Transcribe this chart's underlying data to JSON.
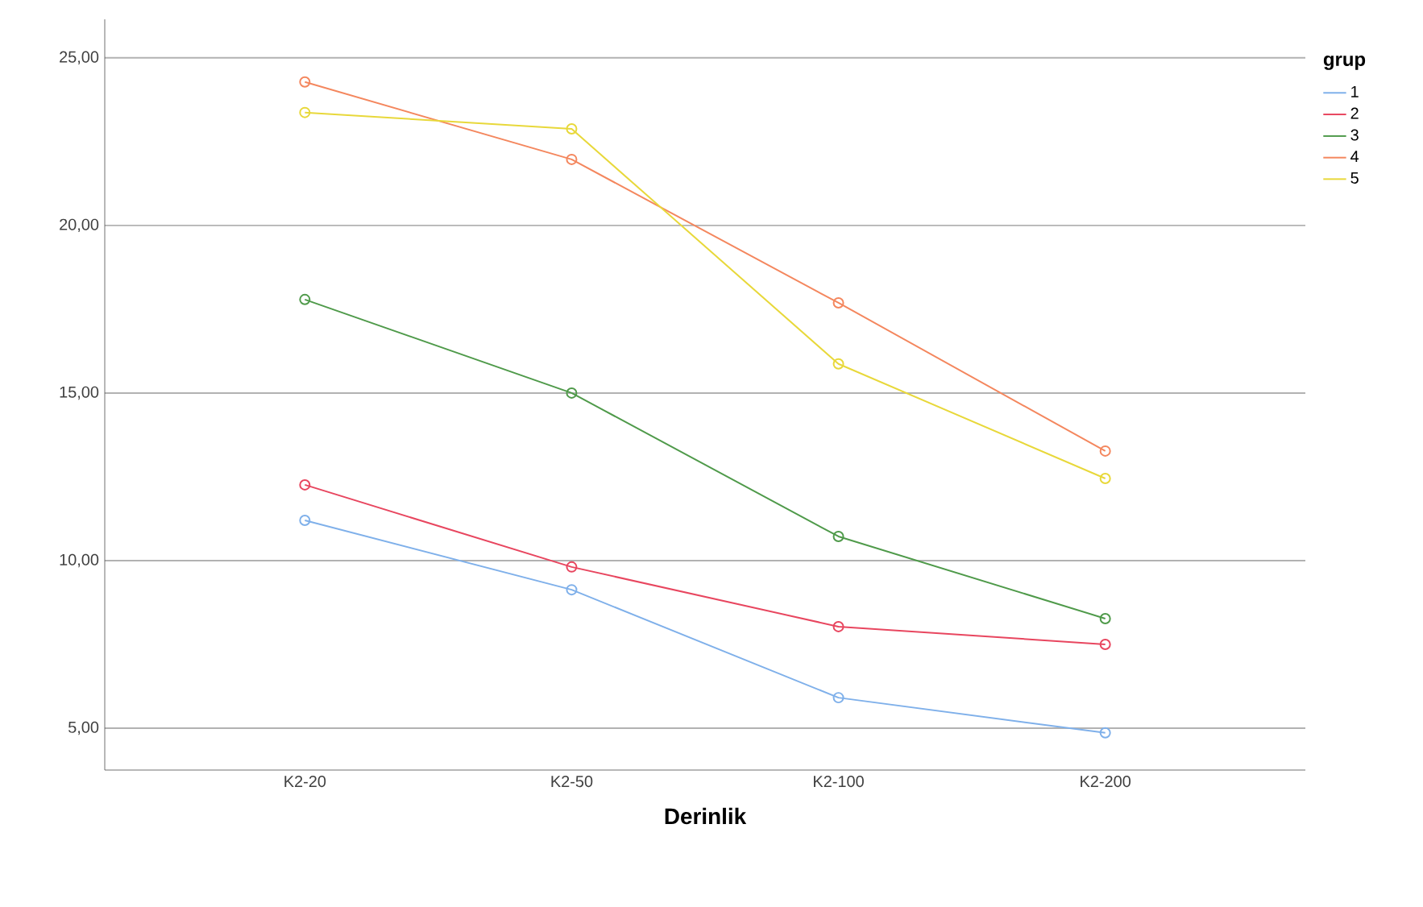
{
  "chart_data": {
    "type": "line",
    "xlabel": "Derinlik",
    "legend_title": "grup",
    "categories": [
      "K2-20",
      "K2-50",
      "K2-100",
      "K2-200"
    ],
    "series": [
      {
        "name": "1",
        "color": "#7fb0ea",
        "values": [
          11.2,
          9.13,
          5.91,
          4.86
        ]
      },
      {
        "name": "2",
        "color": "#e8465f",
        "values": [
          12.26,
          9.81,
          8.03,
          7.5
        ]
      },
      {
        "name": "3",
        "color": "#4f9a4a",
        "values": [
          17.79,
          15.0,
          10.72,
          8.27
        ]
      },
      {
        "name": "4",
        "color": "#f4875e",
        "values": [
          24.28,
          21.97,
          17.69,
          13.27
        ]
      },
      {
        "name": "5",
        "color": "#e8d83a",
        "values": [
          23.37,
          22.88,
          15.87,
          12.45
        ]
      }
    ],
    "ylim": [
      3.75,
      26.15
    ],
    "yticks": [
      {
        "value": 5,
        "label": "5,00"
      },
      {
        "value": 10,
        "label": "10,00"
      },
      {
        "value": 15,
        "label": "15,00"
      },
      {
        "value": 20,
        "label": "20,00"
      },
      {
        "value": 25,
        "label": "25,00"
      }
    ],
    "grid": "y",
    "legend": "right",
    "marker": "circle",
    "line_style": "solid"
  }
}
